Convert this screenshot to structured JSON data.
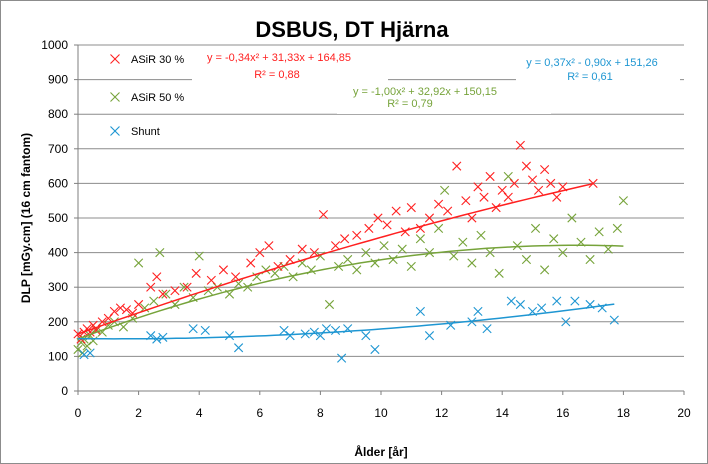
{
  "chart_data": {
    "type": "scatter",
    "title": "DSBUS, DT Hjärna",
    "xlabel": "Ålder [år]",
    "ylabel": "DLP  [mGy.cm]  (16 cm fantom)",
    "xlim": [
      0,
      20
    ],
    "ylim": [
      0,
      1000
    ],
    "x_ticks": [
      "0",
      "2",
      "4",
      "6",
      "8",
      "10",
      "12",
      "14",
      "16",
      "18",
      "20"
    ],
    "y_ticks": [
      "0",
      "100",
      "200",
      "300",
      "400",
      "500",
      "600",
      "700",
      "800",
      "900",
      "1000"
    ],
    "grid": "horizontal",
    "legend_position": "top-left",
    "marker": "x",
    "series": [
      {
        "name": "ASiR 30 %",
        "color": "#ff2020",
        "x_range": [
          0,
          17
        ],
        "equation": "y = -0,34x² + 31,33x + 164,85",
        "r2": "R² = 0,88",
        "trend": {
          "a": -0.34,
          "b": 31.33,
          "c": 164.85
        },
        "points": [
          [
            0.0,
            165
          ],
          [
            0.1,
            150
          ],
          [
            0.2,
            170
          ],
          [
            0.3,
            180
          ],
          [
            0.4,
            170
          ],
          [
            0.5,
            190
          ],
          [
            0.6,
            175
          ],
          [
            0.8,
            200
          ],
          [
            1.0,
            210
          ],
          [
            1.2,
            230
          ],
          [
            1.4,
            240
          ],
          [
            1.6,
            235
          ],
          [
            1.8,
            225
          ],
          [
            2.0,
            250
          ],
          [
            2.4,
            300
          ],
          [
            2.6,
            330
          ],
          [
            2.8,
            280
          ],
          [
            3.2,
            290
          ],
          [
            3.6,
            300
          ],
          [
            3.9,
            340
          ],
          [
            4.4,
            320
          ],
          [
            4.8,
            350
          ],
          [
            5.2,
            330
          ],
          [
            5.7,
            370
          ],
          [
            6.0,
            400
          ],
          [
            6.3,
            420
          ],
          [
            6.6,
            360
          ],
          [
            7.0,
            380
          ],
          [
            7.4,
            410
          ],
          [
            7.8,
            400
          ],
          [
            8.1,
            510
          ],
          [
            8.5,
            420
          ],
          [
            8.8,
            440
          ],
          [
            9.2,
            450
          ],
          [
            9.6,
            470
          ],
          [
            9.9,
            500
          ],
          [
            10.2,
            480
          ],
          [
            10.5,
            520
          ],
          [
            10.8,
            460
          ],
          [
            11.0,
            530
          ],
          [
            11.3,
            470
          ],
          [
            11.6,
            500
          ],
          [
            11.9,
            540
          ],
          [
            12.2,
            520
          ],
          [
            12.5,
            650
          ],
          [
            12.8,
            550
          ],
          [
            13.0,
            500
          ],
          [
            13.2,
            590
          ],
          [
            13.4,
            560
          ],
          [
            13.6,
            620
          ],
          [
            13.8,
            530
          ],
          [
            14.0,
            580
          ],
          [
            14.2,
            560
          ],
          [
            14.4,
            600
          ],
          [
            14.6,
            710
          ],
          [
            14.8,
            650
          ],
          [
            15.0,
            610
          ],
          [
            15.2,
            580
          ],
          [
            15.4,
            640
          ],
          [
            15.6,
            600
          ],
          [
            15.8,
            560
          ],
          [
            16.0,
            590
          ],
          [
            17.0,
            600
          ]
        ]
      },
      {
        "name": "ASiR 50 %",
        "color": "#76a33a",
        "x_range": [
          0,
          18
        ],
        "equation": "y = -1,00x² + 32,92x + 150,15",
        "r2": "R² = 0,79",
        "trend": {
          "a": -1.0,
          "b": 32.92,
          "c": 150.15
        },
        "points": [
          [
            0.0,
            120
          ],
          [
            0.1,
            140
          ],
          [
            0.15,
            110
          ],
          [
            0.2,
            150
          ],
          [
            0.3,
            130
          ],
          [
            0.4,
            160
          ],
          [
            0.5,
            145
          ],
          [
            0.6,
            180
          ],
          [
            0.8,
            170
          ],
          [
            1.0,
            190
          ],
          [
            1.2,
            200
          ],
          [
            1.5,
            185
          ],
          [
            1.8,
            210
          ],
          [
            2.0,
            370
          ],
          [
            2.2,
            240
          ],
          [
            2.5,
            260
          ],
          [
            2.7,
            400
          ],
          [
            2.9,
            280
          ],
          [
            3.2,
            250
          ],
          [
            3.5,
            300
          ],
          [
            3.8,
            270
          ],
          [
            4.0,
            390
          ],
          [
            4.3,
            290
          ],
          [
            4.6,
            300
          ],
          [
            5.0,
            280
          ],
          [
            5.3,
            310
          ],
          [
            5.6,
            300
          ],
          [
            5.9,
            330
          ],
          [
            6.2,
            350
          ],
          [
            6.5,
            340
          ],
          [
            6.8,
            360
          ],
          [
            7.1,
            330
          ],
          [
            7.4,
            370
          ],
          [
            7.7,
            350
          ],
          [
            8.0,
            390
          ],
          [
            8.3,
            250
          ],
          [
            8.6,
            360
          ],
          [
            8.9,
            380
          ],
          [
            9.2,
            350
          ],
          [
            9.5,
            400
          ],
          [
            9.8,
            370
          ],
          [
            10.1,
            420
          ],
          [
            10.4,
            380
          ],
          [
            10.7,
            410
          ],
          [
            11.0,
            360
          ],
          [
            11.3,
            440
          ],
          [
            11.6,
            400
          ],
          [
            11.9,
            470
          ],
          [
            12.1,
            580
          ],
          [
            12.4,
            390
          ],
          [
            12.7,
            430
          ],
          [
            13.0,
            370
          ],
          [
            13.3,
            450
          ],
          [
            13.6,
            400
          ],
          [
            13.9,
            340
          ],
          [
            14.2,
            620
          ],
          [
            14.5,
            420
          ],
          [
            14.8,
            380
          ],
          [
            15.1,
            470
          ],
          [
            15.4,
            350
          ],
          [
            15.7,
            440
          ],
          [
            16.0,
            400
          ],
          [
            16.3,
            500
          ],
          [
            16.6,
            430
          ],
          [
            16.9,
            380
          ],
          [
            17.2,
            460
          ],
          [
            17.5,
            410
          ],
          [
            17.8,
            470
          ],
          [
            18.0,
            550
          ]
        ]
      },
      {
        "name": "Shunt",
        "color": "#1e96d2",
        "x_range": [
          0,
          17.7
        ],
        "equation": "y = 0,37x² - 0,90x + 151,26",
        "r2": "R² = 0,61",
        "trend": {
          "a": 0.37,
          "b": -0.9,
          "c": 151.26
        },
        "points": [
          [
            0.2,
            105
          ],
          [
            0.4,
            110
          ],
          [
            2.4,
            160
          ],
          [
            2.6,
            150
          ],
          [
            2.8,
            155
          ],
          [
            3.8,
            180
          ],
          [
            4.2,
            175
          ],
          [
            5.0,
            160
          ],
          [
            5.3,
            125
          ],
          [
            6.8,
            175
          ],
          [
            7.0,
            160
          ],
          [
            7.5,
            165
          ],
          [
            7.8,
            170
          ],
          [
            8.0,
            160
          ],
          [
            8.2,
            180
          ],
          [
            8.5,
            175
          ],
          [
            8.7,
            95
          ],
          [
            8.9,
            180
          ],
          [
            9.5,
            160
          ],
          [
            9.8,
            120
          ],
          [
            11.3,
            230
          ],
          [
            11.6,
            160
          ],
          [
            12.3,
            190
          ],
          [
            13.0,
            200
          ],
          [
            13.2,
            230
          ],
          [
            13.5,
            180
          ],
          [
            14.3,
            260
          ],
          [
            14.6,
            250
          ],
          [
            15.0,
            230
          ],
          [
            15.3,
            240
          ],
          [
            15.8,
            260
          ],
          [
            16.1,
            200
          ],
          [
            16.4,
            260
          ],
          [
            16.9,
            250
          ],
          [
            17.3,
            240
          ],
          [
            17.7,
            205
          ]
        ]
      }
    ]
  }
}
